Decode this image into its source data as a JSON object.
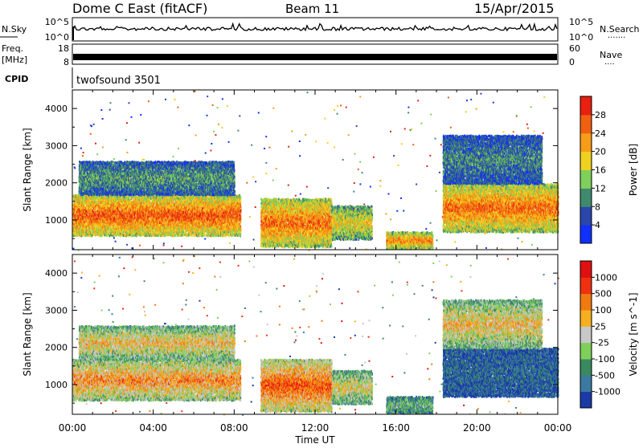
{
  "header": {
    "title": "Dome C East (fitACF)",
    "beam": "Beam 11",
    "date": "15/Apr/2015"
  },
  "labels": {
    "nsky": "N.Sky",
    "nsearch": "N.Search",
    "freq_line1": "Freq.",
    "freq_line2": "[MHz]",
    "nave": "Nave",
    "cpid": "CPID",
    "cpid_value": "twofsound 3501",
    "nsky_top": "10^5",
    "nsky_bottom": "10^0",
    "nsearch_top": "10^5",
    "nsearch_bottom": "10^0",
    "freq_top": "18",
    "freq_bottom": "8",
    "nave_top": "60",
    "nave_bottom": "0",
    "nsearch_dots": "·······",
    "nave_dots": "····",
    "xlabel": "Time UT"
  },
  "chart_data": [
    {
      "type": "heatmap",
      "panel": "power",
      "ylabel": "Slant Range [km]",
      "ylim": [
        200,
        4500
      ],
      "yticks": [
        1000,
        2000,
        3000,
        4000
      ],
      "xticks": [
        "00:00",
        "04:00",
        "08:00",
        "12:00",
        "16:00",
        "20:00",
        "00:00"
      ],
      "colorbar": {
        "label": "Power [dB]",
        "ticks": [
          "4",
          "8",
          "12",
          "16",
          "20",
          "24",
          "28"
        ],
        "colors": [
          "#1030ff",
          "#2a46aa",
          "#3f8a6e",
          "#7ed05a",
          "#f0d020",
          "#f79c18",
          "#f06010",
          "#e82010"
        ]
      },
      "blobs": [
        {
          "t0": 0.0,
          "t1": 8.3,
          "r0": 600,
          "r1": 1700,
          "level": 0.85
        },
        {
          "t0": 0.3,
          "t1": 8.0,
          "r0": 1700,
          "r1": 2600,
          "level": 0.35
        },
        {
          "t0": 9.3,
          "t1": 12.8,
          "r0": 300,
          "r1": 1600,
          "level": 0.8
        },
        {
          "t0": 12.8,
          "t1": 14.8,
          "r0": 500,
          "r1": 1400,
          "level": 0.6
        },
        {
          "t0": 15.5,
          "t1": 17.8,
          "r0": 250,
          "r1": 700,
          "level": 0.75
        },
        {
          "t0": 18.3,
          "t1": 24.0,
          "r0": 700,
          "r1": 2000,
          "level": 0.8
        },
        {
          "t0": 18.3,
          "t1": 23.2,
          "r0": 2000,
          "r1": 3300,
          "level": 0.3
        }
      ]
    },
    {
      "type": "heatmap",
      "panel": "velocity",
      "ylabel": "Slant Range [km]",
      "ylim": [
        200,
        4500
      ],
      "yticks": [
        1000,
        2000,
        3000,
        4000
      ],
      "xticks": [
        "00:00",
        "04:00",
        "08:00",
        "12:00",
        "16:00",
        "20:00",
        "00:00"
      ],
      "colorbar": {
        "label": "Velocity [m s^-1]",
        "ticks": [
          "1000",
          "500",
          "100",
          "25",
          "-25",
          "-100",
          "-500",
          "-1000"
        ],
        "colors": [
          "#1a3aa6",
          "#3a7aa0",
          "#3a8a60",
          "#7ed05a",
          "#c8c8c8",
          "#f5b020",
          "#f07a10",
          "#f03010",
          "#e01010"
        ]
      },
      "blobs": [
        {
          "t0": 0.0,
          "t1": 8.3,
          "r0": 600,
          "r1": 1700,
          "level": 0.7
        },
        {
          "t0": 0.3,
          "t1": 8.0,
          "r0": 1700,
          "r1": 2600,
          "level": 0.6
        },
        {
          "t0": 9.3,
          "t1": 12.8,
          "r0": 300,
          "r1": 1700,
          "level": 0.8
        },
        {
          "t0": 12.8,
          "t1": 14.8,
          "r0": 500,
          "r1": 1400,
          "level": 0.55
        },
        {
          "t0": 15.5,
          "t1": 17.8,
          "r0": 250,
          "r1": 700,
          "level": 0.35
        },
        {
          "t0": 18.3,
          "t1": 24.0,
          "r0": 700,
          "r1": 2000,
          "level": 0.15
        },
        {
          "t0": 18.3,
          "t1": 23.2,
          "r0": 2000,
          "r1": 3300,
          "level": 0.6
        }
      ]
    }
  ]
}
